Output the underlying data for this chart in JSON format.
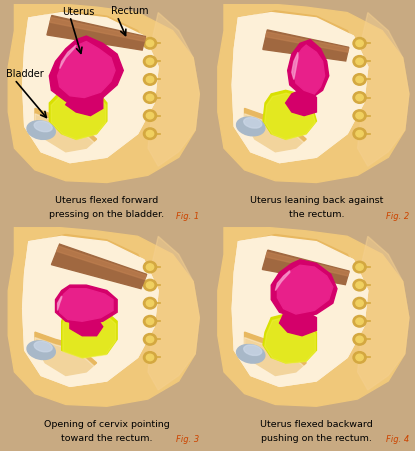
{
  "bg_color": "#c8aa82",
  "panel_bg": "#fce8c8",
  "caption_bg": "#ffffff",
  "skin_outer": "#f0c87a",
  "skin_mid": "#e8b860",
  "skin_inner_light": "#faebd0",
  "skin_cavity": "#fdf0d8",
  "belly_right": "#f5d090",
  "uterus_dark": "#d4006a",
  "uterus_mid": "#e8208a",
  "uterus_pink": "#f060b0",
  "uterus_light": "#f8a0d0",
  "uterus_white_streak": "#fde0f0",
  "rectum_dark": "#8b5030",
  "rectum_mid": "#a06840",
  "rectum_light": "#c08050",
  "yellow_bright": "#d8e000",
  "yellow_dark": "#b8b800",
  "yellow_light": "#eef040",
  "bladder_dark": "#8090a8",
  "bladder_mid": "#a8b8c8",
  "bladder_light": "#ccd8e8",
  "spine_outer": "#d4a840",
  "spine_inner": "#f0d060",
  "orange_area": "#e89040",
  "captions": [
    "Uterus flexed forward\npressing on the bladder.",
    "Uterus leaning back against\nthe rectum.",
    "Opening of cervix pointing\ntoward the rectum.",
    "Uterus flexed backward\npushing on the rectum."
  ],
  "fig_labels": [
    "Fig. 1",
    "Fig. 2",
    "Fig. 3",
    "Fig. 4"
  ],
  "annot_uterus": "Uterus",
  "annot_rectum": "Rectum",
  "annot_bladder": "Bladder"
}
